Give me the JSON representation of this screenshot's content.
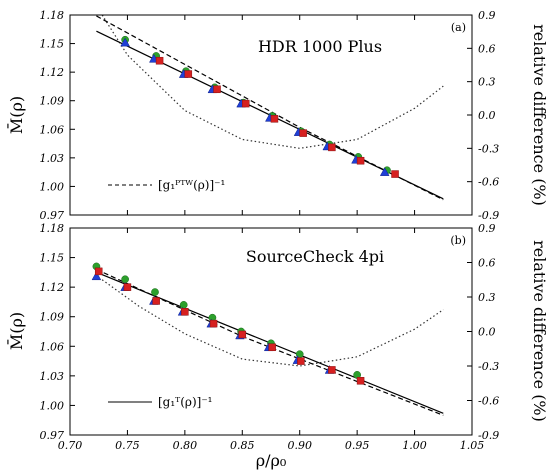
{
  "chart_data": [
    {
      "type": "scatter",
      "panel_tag": "(a)",
      "title": "HDR 1000 Plus",
      "ylabel": "M̄(ρ)",
      "y2label": "relative difference (%)",
      "xlim": [
        0.7,
        1.05
      ],
      "ylim": [
        0.97,
        1.18
      ],
      "y2lim": [
        -0.9,
        0.9
      ],
      "y_ticks": [
        "0.97",
        "1.00",
        "1.03",
        "1.06",
        "1.09",
        "1.12",
        "1.15",
        "1.18"
      ],
      "y2_ticks": [
        "-0.9",
        "-0.6",
        "-0.3",
        "0.0",
        "0.3",
        "0.6",
        "0.9"
      ],
      "legend": {
        "label": "[g₁ᴾᵀᵂ(ρ)]⁻¹",
        "style": "dashed",
        "placement": "lower-left"
      },
      "series": [
        {
          "marker": "circle",
          "color": "#2ca02c",
          "points": [
            [
              0.748,
              1.154
            ],
            [
              0.775,
              1.137
            ],
            [
              0.801,
              1.121
            ],
            [
              0.826,
              1.104
            ],
            [
              0.851,
              1.088
            ],
            [
              0.876,
              1.074
            ],
            [
              0.901,
              1.058
            ],
            [
              0.926,
              1.044
            ],
            [
              0.951,
              1.031
            ],
            [
              0.976,
              1.017
            ]
          ]
        },
        {
          "marker": "triangle",
          "color": "#1f3fd6",
          "points": [
            [
              0.748,
              1.151
            ],
            [
              0.773,
              1.134
            ],
            [
              0.799,
              1.118
            ],
            [
              0.824,
              1.102
            ],
            [
              0.849,
              1.087
            ],
            [
              0.874,
              1.072
            ],
            [
              0.899,
              1.057
            ],
            [
              0.924,
              1.042
            ],
            [
              0.949,
              1.028
            ],
            [
              0.974,
              1.015
            ]
          ]
        },
        {
          "marker": "square",
          "color": "#d62020",
          "points": [
            [
              0.778,
              1.132
            ],
            [
              0.803,
              1.118
            ],
            [
              0.828,
              1.102
            ],
            [
              0.853,
              1.087
            ],
            [
              0.878,
              1.071
            ],
            [
              0.903,
              1.056
            ],
            [
              0.928,
              1.041
            ],
            [
              0.953,
              1.027
            ],
            [
              0.983,
              1.013
            ]
          ]
        }
      ],
      "fit_solid": [
        [
          0.723,
          1.163
        ],
        [
          1.025,
          0.987
        ]
      ],
      "fit_dashed": [
        [
          0.723,
          1.179
        ],
        [
          0.9,
          1.062
        ],
        [
          1.025,
          0.986
        ]
      ],
      "rel_diff_dotted": [
        [
          0.728,
          0.9
        ],
        [
          0.75,
          0.54
        ],
        [
          0.8,
          0.04
        ],
        [
          0.85,
          -0.22
        ],
        [
          0.9,
          -0.3
        ],
        [
          0.95,
          -0.22
        ],
        [
          1.0,
          0.06
        ],
        [
          1.025,
          0.26
        ]
      ]
    },
    {
      "type": "scatter",
      "panel_tag": "(b)",
      "title": "SourceCheck 4pi",
      "xlabel": "ρ/ρ₀",
      "ylabel": "M̄(ρ)",
      "y2label": "relative difference (%)",
      "xlim": [
        0.7,
        1.05
      ],
      "ylim": [
        0.97,
        1.18
      ],
      "y2lim": [
        -0.9,
        0.9
      ],
      "x_ticks": [
        "0.70",
        "0.75",
        "0.80",
        "0.85",
        "0.90",
        "0.95",
        "1.00",
        "1.05"
      ],
      "y_ticks": [
        "0.97",
        "1.00",
        "1.03",
        "1.06",
        "1.09",
        "1.12",
        "1.15",
        "1.18"
      ],
      "y2_ticks": [
        "-0.9",
        "-0.6",
        "-0.3",
        "0.0",
        "0.3",
        "0.6",
        "0.9"
      ],
      "legend": {
        "label": "[g₁ᵀ(ρ)]⁻¹",
        "style": "solid",
        "placement": "lower-left"
      },
      "series": [
        {
          "marker": "circle",
          "color": "#2ca02c",
          "points": [
            [
              0.723,
              1.141
            ],
            [
              0.748,
              1.128
            ],
            [
              0.774,
              1.115
            ],
            [
              0.799,
              1.102
            ],
            [
              0.824,
              1.089
            ],
            [
              0.849,
              1.075
            ],
            [
              0.875,
              1.063
            ],
            [
              0.9,
              1.052
            ],
            [
              0.95,
              1.031
            ]
          ]
        },
        {
          "marker": "triangle",
          "color": "#1f3fd6",
          "points": [
            [
              0.723,
              1.131
            ],
            [
              0.748,
              1.12
            ],
            [
              0.773,
              1.106
            ],
            [
              0.798,
              1.095
            ],
            [
              0.823,
              1.083
            ],
            [
              0.848,
              1.071
            ],
            [
              0.873,
              1.059
            ],
            [
              0.898,
              1.046
            ],
            [
              0.926,
              1.036
            ]
          ]
        },
        {
          "marker": "square",
          "color": "#d62020",
          "points": [
            [
              0.725,
              1.136
            ],
            [
              0.75,
              1.12
            ],
            [
              0.775,
              1.106
            ],
            [
              0.8,
              1.095
            ],
            [
              0.825,
              1.083
            ],
            [
              0.85,
              1.072
            ],
            [
              0.876,
              1.059
            ],
            [
              0.901,
              1.045
            ],
            [
              0.928,
              1.036
            ],
            [
              0.953,
              1.025
            ]
          ]
        }
      ],
      "fit_solid": [
        [
          0.723,
          1.135
        ],
        [
          1.025,
          0.992
        ]
      ],
      "fit_dashed": [
        [
          0.723,
          1.138
        ],
        [
          0.85,
          1.07
        ],
        [
          1.025,
          0.99
        ]
      ],
      "rel_diff_dotted": [
        [
          0.728,
          0.45
        ],
        [
          0.76,
          0.22
        ],
        [
          0.8,
          -0.02
        ],
        [
          0.85,
          -0.24
        ],
        [
          0.9,
          -0.3
        ],
        [
          0.95,
          -0.22
        ],
        [
          1.0,
          0.02
        ],
        [
          1.025,
          0.19
        ]
      ]
    }
  ]
}
